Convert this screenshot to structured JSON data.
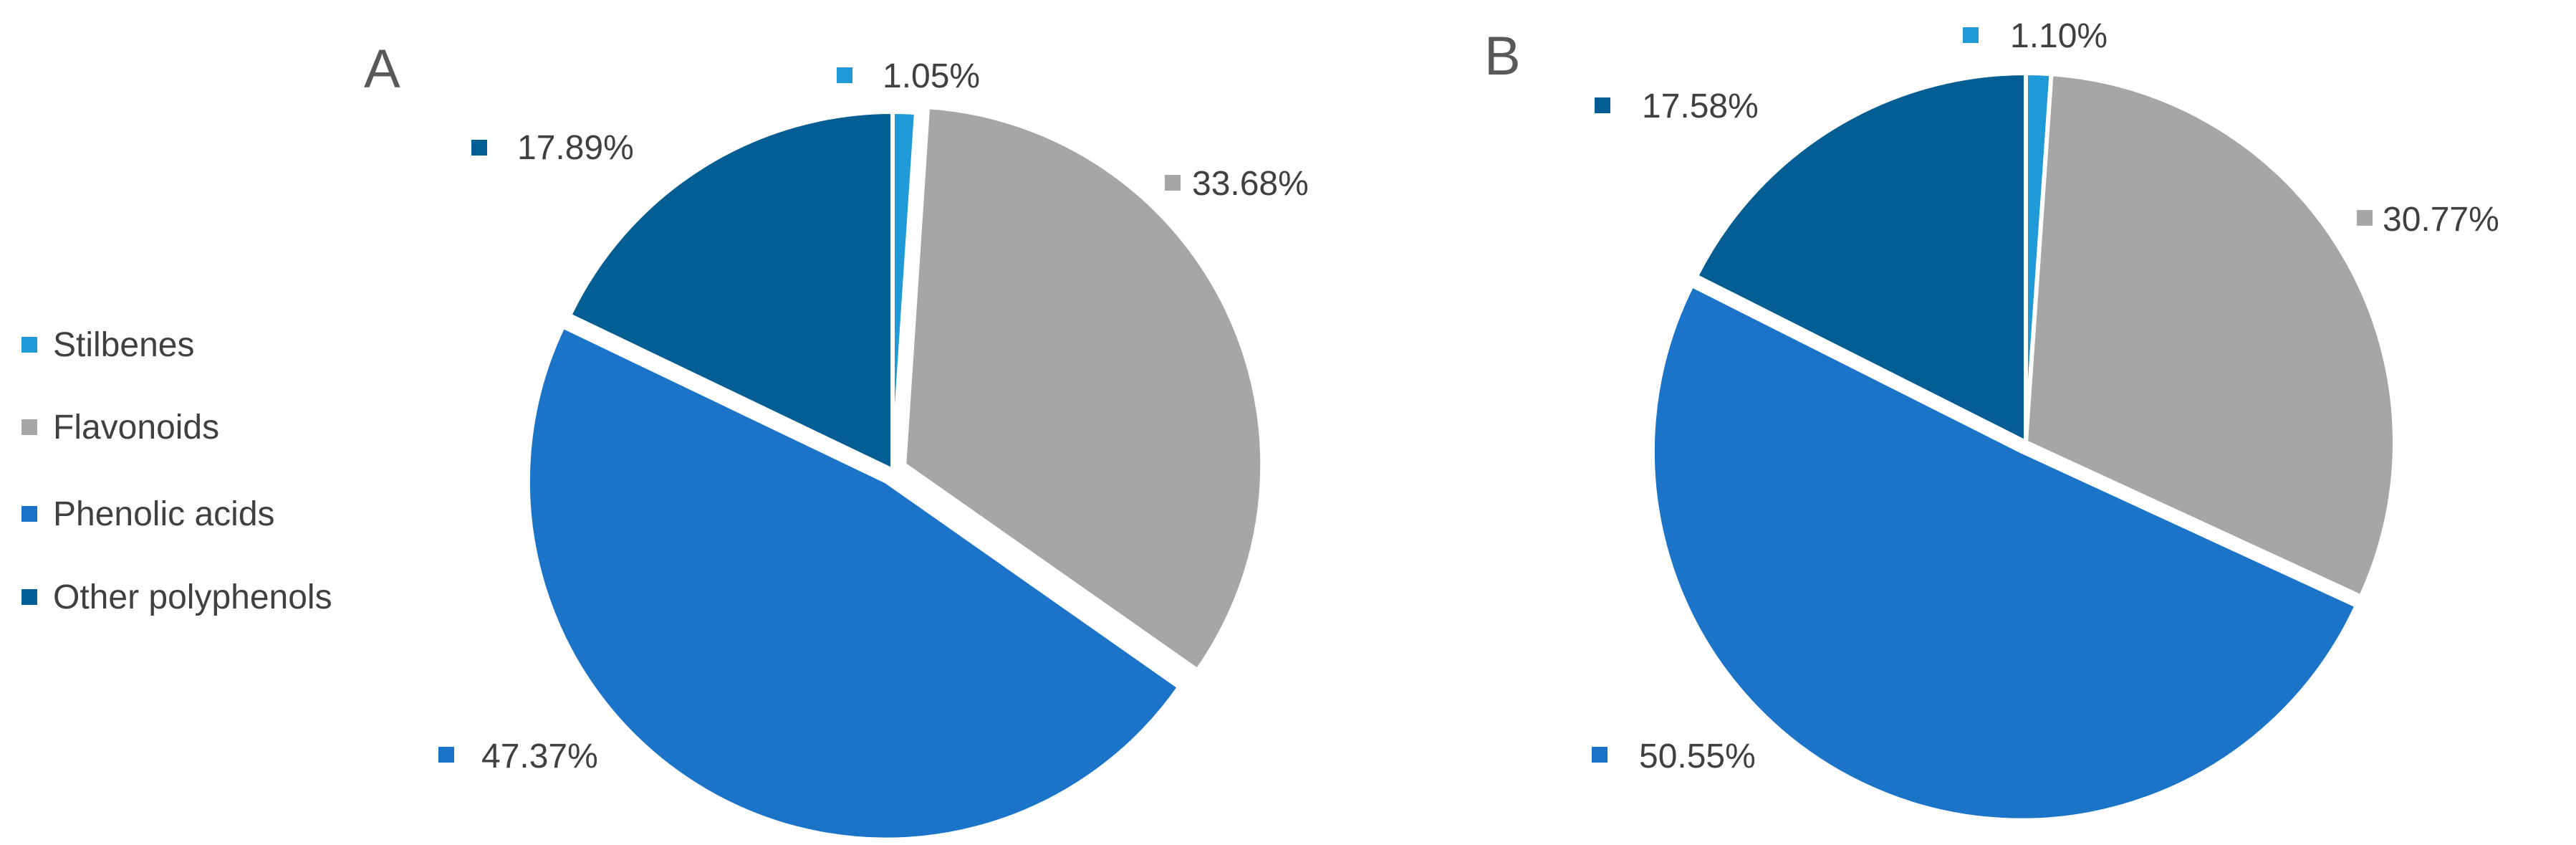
{
  "chart_data": [
    {
      "type": "pie",
      "panel_label": "A",
      "categories": [
        "Stilbenes",
        "Flavonoids",
        "Phenolic acids",
        "Other polyphenols"
      ],
      "values": [
        1.05,
        33.68,
        47.37,
        17.89
      ],
      "value_labels": [
        "1.05%",
        "33.68%",
        "47.37%",
        "17.89%"
      ],
      "colors": [
        "#1f9ad6",
        "#a6a6a6",
        "#1b74c8",
        "#055e93"
      ],
      "start_angle_deg": 0,
      "direction": "clockwise",
      "exploded_slices": [
        "Flavonoids",
        "Phenolic acids"
      ]
    },
    {
      "type": "pie",
      "panel_label": "B",
      "categories": [
        "Stilbenes",
        "Flavonoids",
        "Phenolic acids",
        "Other polyphenols"
      ],
      "values": [
        1.1,
        30.77,
        50.55,
        17.58
      ],
      "value_labels": [
        "1.10%",
        "30.77%",
        "50.55%",
        "17.58%"
      ],
      "colors": [
        "#1f9ad6",
        "#a6a6a6",
        "#1b74c8",
        "#055e93"
      ],
      "start_angle_deg": 0,
      "direction": "clockwise",
      "exploded_slices": [
        "Phenolic acids"
      ]
    }
  ],
  "legend": {
    "placement": "left",
    "items": [
      {
        "label": "Stilbenes",
        "color": "#1f9ad6"
      },
      {
        "label": "Flavonoids",
        "color": "#a6a6a6"
      },
      {
        "label": "Phenolic acids",
        "color": "#1b74c8"
      },
      {
        "label": "Other polyphenols",
        "color": "#055e93"
      }
    ]
  }
}
